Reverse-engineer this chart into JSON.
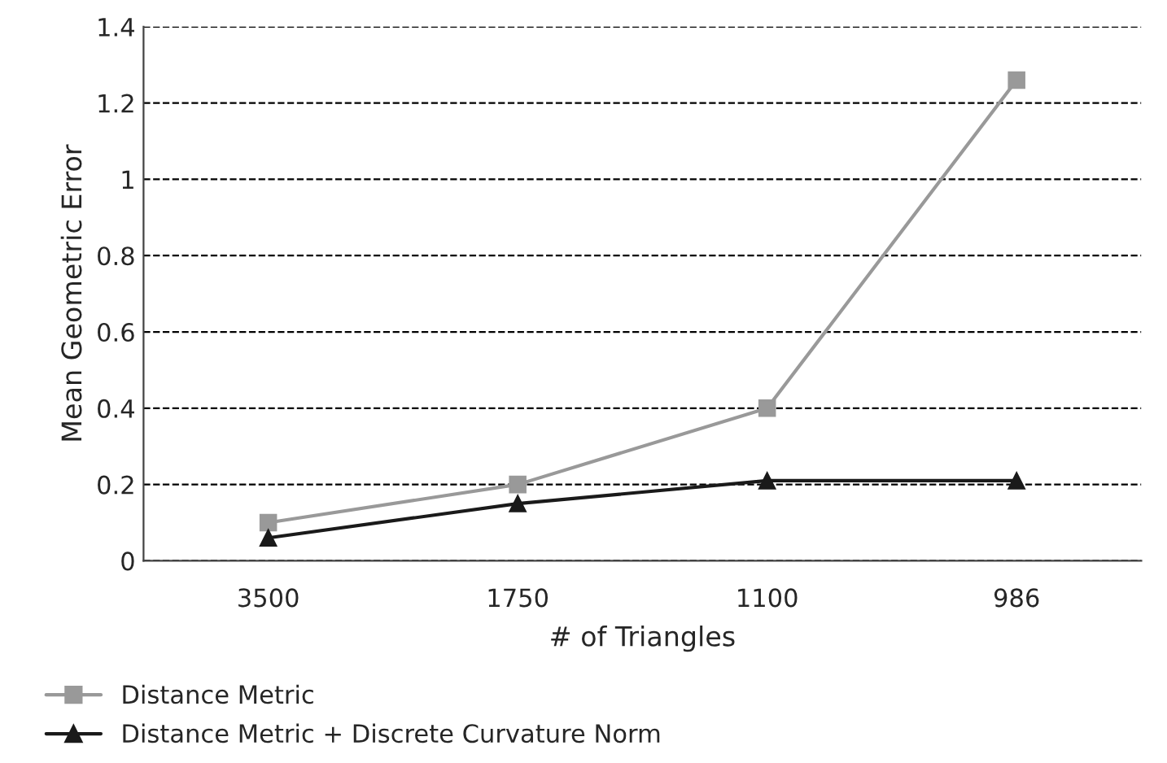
{
  "chart_data": {
    "type": "line",
    "xlabel": "# of Triangles",
    "ylabel": "Mean Geometric Error",
    "categories": [
      "3500",
      "1750",
      "1100",
      "986"
    ],
    "series": [
      {
        "name": "Distance Metric",
        "color": "#999999",
        "marker": "square",
        "values": [
          0.1,
          0.2,
          0.4,
          1.26
        ]
      },
      {
        "name": "Distance Metric + Discrete Curvature Norm",
        "color": "#1a1a1a",
        "marker": "triangle",
        "values": [
          0.06,
          0.15,
          0.21,
          0.21
        ]
      }
    ],
    "ylim": [
      0,
      1.4
    ],
    "yticks": [
      0,
      0.2,
      0.4,
      0.6,
      0.8,
      1,
      1.2,
      1.4
    ],
    "grid": "y",
    "legend": "bottom",
    "line_style": "solid"
  }
}
